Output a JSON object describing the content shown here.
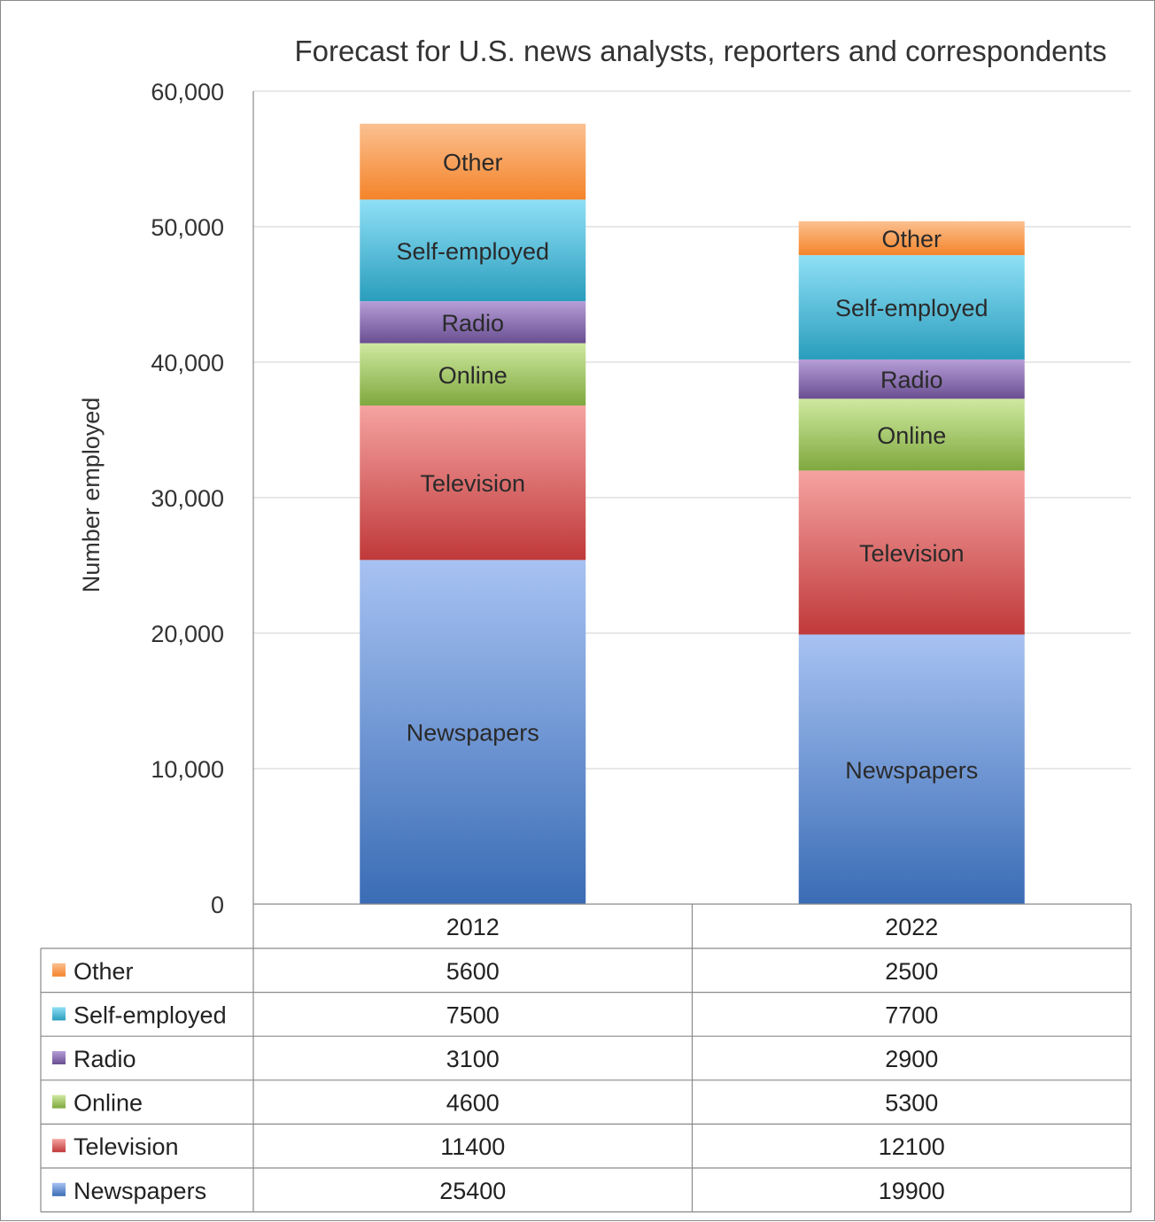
{
  "chart_data": {
    "type": "bar",
    "stacked": true,
    "title": "Forecast for U.S. news analysts, reporters and correspondents",
    "xlabel": "",
    "ylabel": "Number employed",
    "ylim": [
      0,
      60000
    ],
    "yticks": [
      "0",
      "10,000",
      "20,000",
      "30,000",
      "40,000",
      "50,000",
      "60,000"
    ],
    "grid": true,
    "legend": "data-table",
    "categories": [
      "2012",
      "2022"
    ],
    "series": [
      {
        "name": "Newspapers",
        "values": [
          25400,
          19900
        ],
        "color": "#4f81bd",
        "color_light": "#a7c2f2",
        "color_dark": "#3a6cb5"
      },
      {
        "name": "Television",
        "values": [
          11400,
          12100
        ],
        "color": "#c0504d",
        "color_light": "#f5a3a1",
        "color_dark": "#c0393a"
      },
      {
        "name": "Online",
        "values": [
          4600,
          5300
        ],
        "color": "#9bbb59",
        "color_light": "#cfe9a0",
        "color_dark": "#7fa83e"
      },
      {
        "name": "Radio",
        "values": [
          3100,
          2900
        ],
        "color": "#8064a2",
        "color_light": "#b69ed8",
        "color_dark": "#6a4f92"
      },
      {
        "name": "Self-employed",
        "values": [
          7500,
          7700
        ],
        "color": "#4bacc6",
        "color_light": "#8fe0f6",
        "color_dark": "#2a9dbd"
      },
      {
        "name": "Other",
        "values": [
          5600,
          2500
        ],
        "color": "#f79646",
        "color_light": "#fbc090",
        "color_dark": "#f4842a"
      }
    ]
  }
}
